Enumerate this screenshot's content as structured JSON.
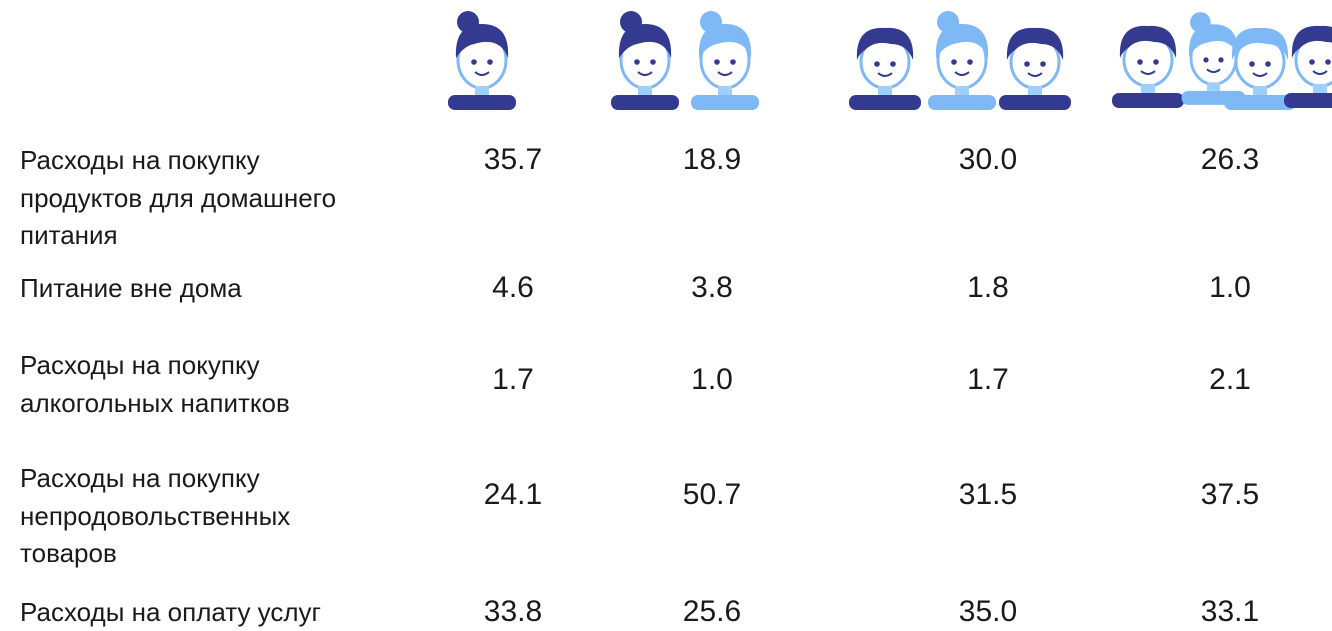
{
  "rows": [
    {
      "label": [
        "Расходы на покупку",
        "продуктов для домашнего",
        "питания"
      ],
      "values": [
        "35.7",
        "18.9",
        "30.0",
        "26.3"
      ]
    },
    {
      "label": [
        "Питание вне дома"
      ],
      "values": [
        "4.6",
        "3.8",
        "1.8",
        "1.0"
      ]
    },
    {
      "label": [
        "Расходы на покупку",
        "алкогольных напитков"
      ],
      "values": [
        "1.7",
        "1.0",
        "1.7",
        "2.1"
      ]
    },
    {
      "label": [
        "Расходы на покупку",
        "непродовольственных",
        "товаров"
      ],
      "values": [
        "24.1",
        "50.7",
        "31.5",
        "37.5"
      ]
    },
    {
      "label": [
        "Расходы на оплату услуг"
      ],
      "values": [
        "33.8",
        "25.6",
        "35.0",
        "33.1"
      ]
    }
  ]
}
